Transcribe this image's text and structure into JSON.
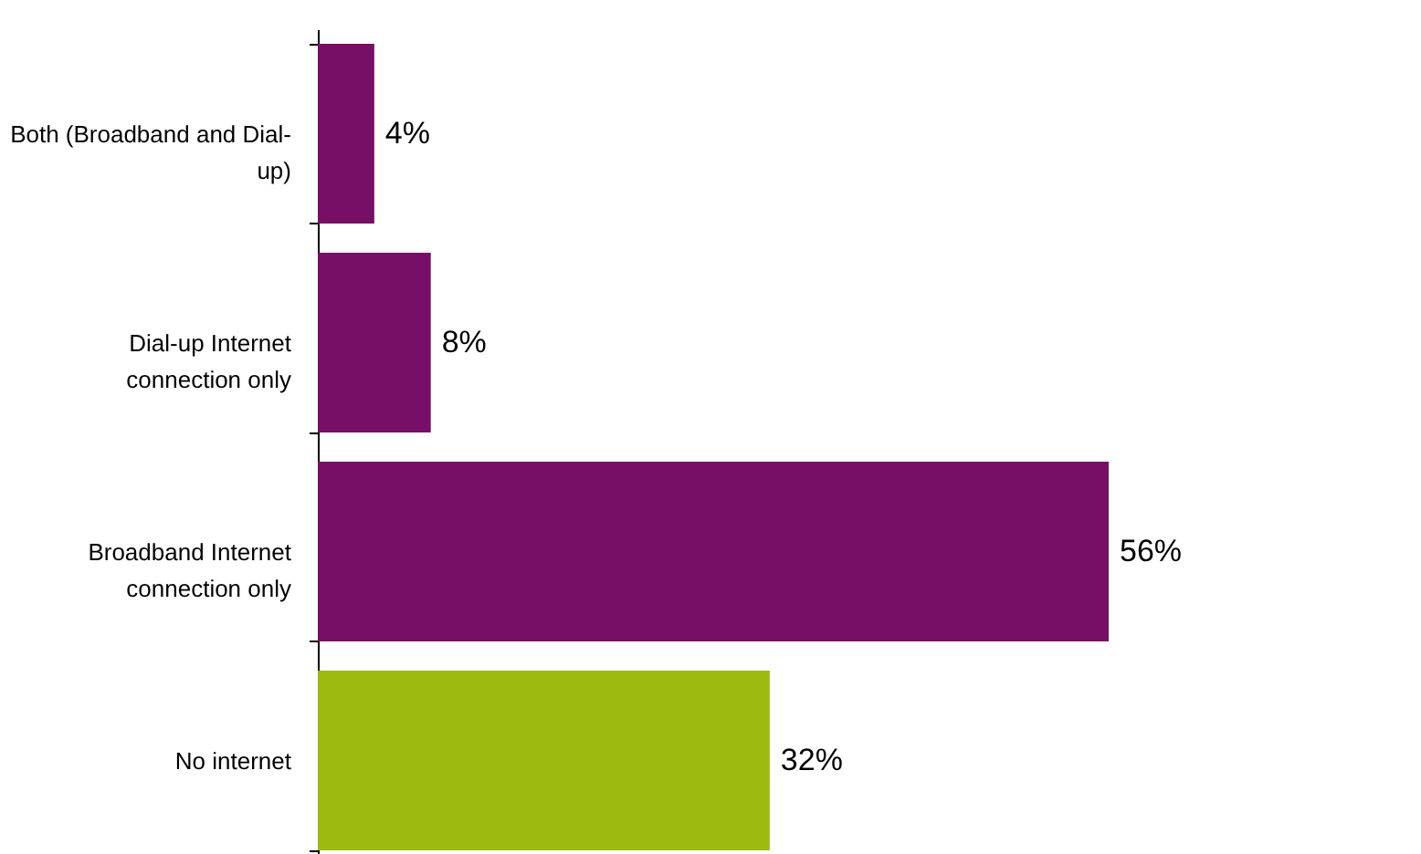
{
  "chart_data": {
    "type": "bar",
    "orientation": "horizontal",
    "categories": [
      "Both (Broadband and Dial-up)",
      "Dial-up Internet connection only",
      "Broadband Internet connection only",
      "No internet"
    ],
    "values": [
      4,
      8,
      56,
      32
    ],
    "colors": [
      "#770f66",
      "#770f66",
      "#770f66",
      "#9bbb11"
    ],
    "value_labels": [
      "4%",
      "8%",
      "56%",
      "32%"
    ]
  }
}
